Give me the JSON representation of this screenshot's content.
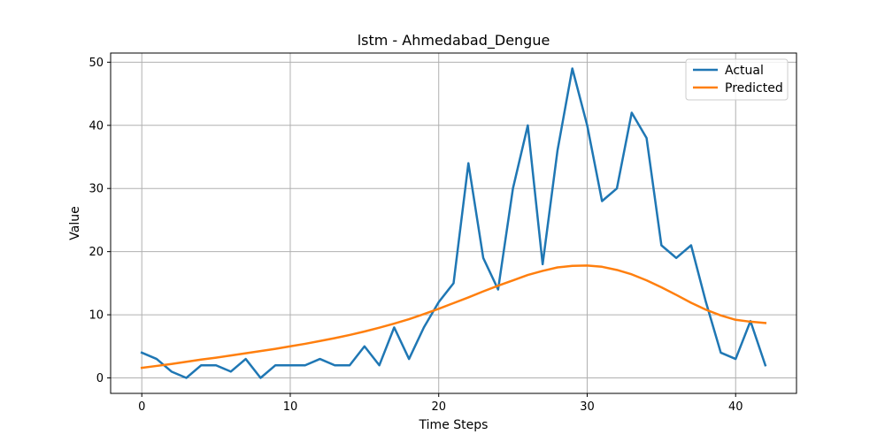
{
  "chart_data": {
    "type": "line",
    "title": "lstm - Ahmedabad_Dengue",
    "xlabel": "Time Steps",
    "ylabel": "Value",
    "xlim": [
      -2.1,
      44.1
    ],
    "ylim": [
      -2.45,
      51.45
    ],
    "xticks": [
      0,
      10,
      20,
      30,
      40
    ],
    "yticks": [
      0,
      10,
      20,
      30,
      40,
      50
    ],
    "grid": true,
    "legend_position": "upper right",
    "x": [
      0,
      1,
      2,
      3,
      4,
      5,
      6,
      7,
      8,
      9,
      10,
      11,
      12,
      13,
      14,
      15,
      16,
      17,
      18,
      19,
      20,
      21,
      22,
      23,
      24,
      25,
      26,
      27,
      28,
      29,
      30,
      31,
      32,
      33,
      34,
      35,
      36,
      37,
      38,
      39,
      40,
      41,
      42
    ],
    "series": [
      {
        "name": "Actual",
        "color": "#1f77b4",
        "values": [
          4,
          3,
          1,
          0,
          2,
          2,
          1,
          3,
          0,
          2,
          2,
          2,
          3,
          2,
          2,
          5,
          2,
          8,
          3,
          8,
          12,
          15,
          34,
          19,
          14,
          30,
          40,
          18,
          36,
          49,
          40,
          28,
          30,
          42,
          38,
          21,
          19,
          21,
          12,
          4,
          3,
          9,
          2
        ]
      },
      {
        "name": "Predicted",
        "color": "#ff7f0e",
        "values": [
          1.6,
          1.9,
          2.2,
          2.55,
          2.9,
          3.2,
          3.55,
          3.9,
          4.25,
          4.6,
          5.0,
          5.4,
          5.85,
          6.3,
          6.8,
          7.35,
          7.95,
          8.6,
          9.3,
          10.1,
          10.95,
          11.85,
          12.75,
          13.7,
          14.6,
          15.45,
          16.3,
          16.95,
          17.5,
          17.75,
          17.8,
          17.6,
          17.1,
          16.4,
          15.45,
          14.35,
          13.15,
          11.9,
          10.8,
          9.9,
          9.2,
          8.9,
          8.7
        ]
      }
    ]
  }
}
